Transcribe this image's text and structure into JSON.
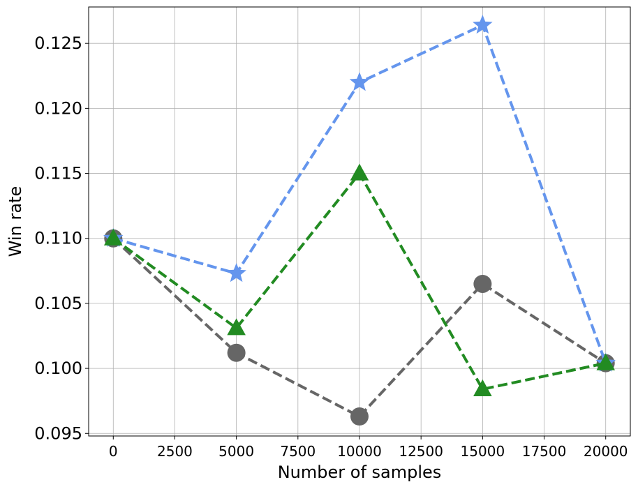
{
  "chart_data": {
    "type": "line",
    "title": "",
    "xlabel": "Number of samples",
    "ylabel": "Win rate",
    "x": [
      0,
      5000,
      10000,
      15000,
      20000
    ],
    "xlim": [
      -1000,
      21000
    ],
    "ylim": [
      0.0948,
      0.1278
    ],
    "xticks": [
      0,
      2500,
      5000,
      7500,
      10000,
      12500,
      15000,
      17500,
      20000
    ],
    "xtick_labels": [
      "0",
      "2500",
      "5000",
      "7500",
      "10000",
      "12500",
      "15000",
      "17500",
      "20000"
    ],
    "yticks": [
      0.095,
      0.1,
      0.105,
      0.11,
      0.115,
      0.12,
      0.125
    ],
    "ytick_labels": [
      "0.095",
      "0.100",
      "0.105",
      "0.110",
      "0.115",
      "0.120",
      "0.125"
    ],
    "grid": true,
    "legend": false,
    "series": [
      {
        "values": [
          0.11,
          0.1012,
          0.0963,
          0.1065,
          0.1004
        ],
        "color": "#666666",
        "marker": "circle",
        "linestyle": "dashed"
      },
      {
        "values": [
          0.11,
          0.1073,
          0.122,
          0.1264,
          0.1004
        ],
        "color": "#6495ED",
        "marker": "star",
        "linestyle": "dashed"
      },
      {
        "values": [
          0.11,
          0.1031,
          0.115,
          0.0984,
          0.1004
        ],
        "color": "#228B22",
        "marker": "triangle",
        "linestyle": "dashed"
      }
    ]
  }
}
